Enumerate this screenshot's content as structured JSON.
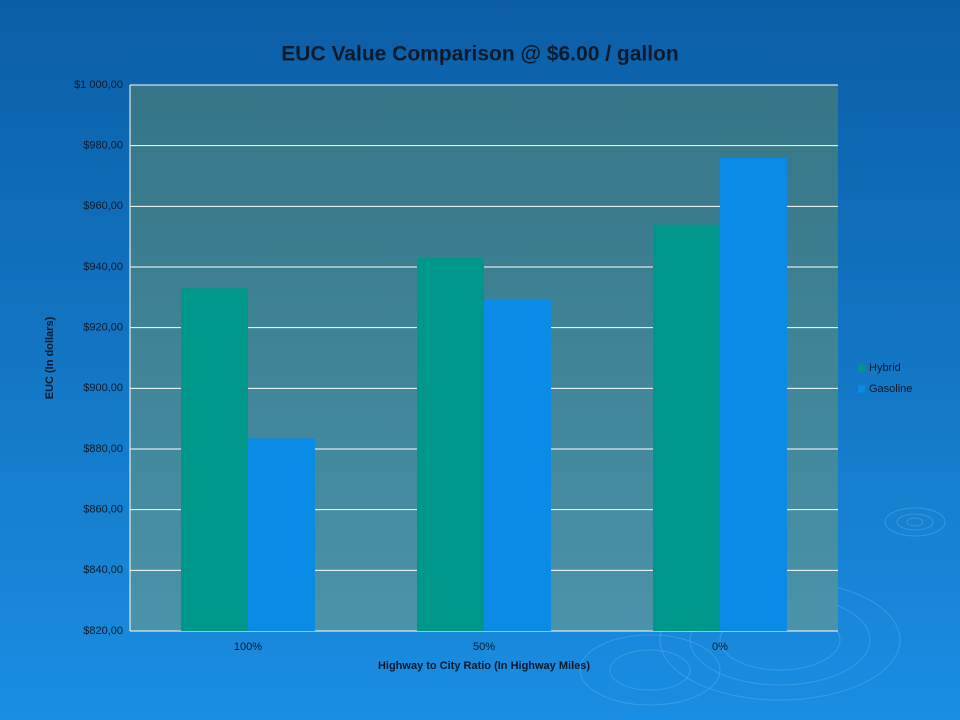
{
  "chart_data": {
    "type": "bar",
    "title": "EUC Value Comparison @ $6.00 / gallon",
    "x_label": "Highway to City Ratio (In Highway Miles)",
    "y_label": "EUC (In dollars)",
    "categories": [
      "100%",
      "50%",
      "0%"
    ],
    "series": [
      {
        "name": "Hybrid",
        "color": "#00978b",
        "values": [
          933,
          943,
          954
        ]
      },
      {
        "name": "Gasoline",
        "color": "#0a8ce6",
        "values": [
          883.5,
          929.5,
          976
        ]
      }
    ],
    "ylim": [
      820,
      1000
    ],
    "yticks": [
      {
        "value": 820,
        "label": "$820,00"
      },
      {
        "value": 840,
        "label": "$840,00"
      },
      {
        "value": 860,
        "label": "$860,00"
      },
      {
        "value": 880,
        "label": "$880,00"
      },
      {
        "value": 900,
        "label": "$900,00"
      },
      {
        "value": 920,
        "label": "$920,00"
      },
      {
        "value": 940,
        "label": "$940,00"
      },
      {
        "value": 960,
        "label": "$960,00"
      },
      {
        "value": 980,
        "label": "$980,00"
      },
      {
        "value": 1000,
        "label": "$1 000,00"
      }
    ],
    "grid": true,
    "legend": "right"
  }
}
